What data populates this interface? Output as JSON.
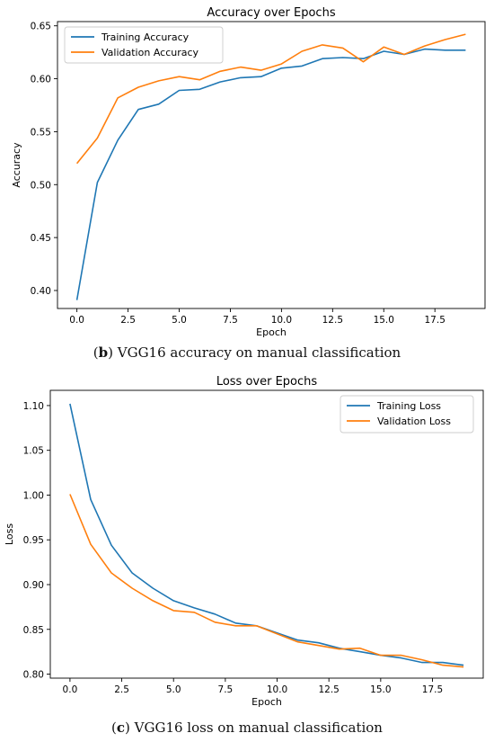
{
  "colors": {
    "training": "#1f77b4",
    "validation": "#ff7f0e"
  },
  "captions": {
    "b": {
      "label": "b",
      "text": " VGG16 accuracy on manual classification"
    },
    "c": {
      "label": "c",
      "text": " VGG16 loss on manual classification"
    }
  },
  "chart_data": [
    {
      "type": "line",
      "title": "Accuracy over Epochs",
      "xlabel": "Epoch",
      "ylabel": "Accuracy",
      "xlim": [
        -0.95,
        19.95
      ],
      "ylim": [
        0.383,
        0.654
      ],
      "xticks": [
        0.0,
        2.5,
        5.0,
        7.5,
        10.0,
        12.5,
        15.0,
        17.5
      ],
      "xtick_labels": [
        "0.0",
        "2.5",
        "5.0",
        "7.5",
        "10.0",
        "12.5",
        "15.0",
        "17.5"
      ],
      "yticks": [
        0.4,
        0.45,
        0.5,
        0.55,
        0.6,
        0.65
      ],
      "ytick_labels": [
        "0.40",
        "0.45",
        "0.50",
        "0.55",
        "0.60",
        "0.65"
      ],
      "grid": false,
      "legend": "top-left",
      "x": [
        0,
        1,
        2,
        3,
        4,
        5,
        6,
        7,
        8,
        9,
        10,
        11,
        12,
        13,
        14,
        15,
        16,
        17,
        18,
        19
      ],
      "series": [
        {
          "name": "Training Accuracy",
          "color": "training",
          "values": [
            0.391,
            0.502,
            0.542,
            0.571,
            0.576,
            0.589,
            0.59,
            0.597,
            0.601,
            0.602,
            0.61,
            0.612,
            0.619,
            0.62,
            0.619,
            0.626,
            0.623,
            0.628,
            0.627,
            0.627
          ]
        },
        {
          "name": "Validation Accuracy",
          "color": "validation",
          "values": [
            0.52,
            0.544,
            0.582,
            0.592,
            0.598,
            0.602,
            0.599,
            0.607,
            0.611,
            0.608,
            0.614,
            0.626,
            0.632,
            0.629,
            0.616,
            0.63,
            0.623,
            0.631,
            0.637,
            0.642
          ]
        }
      ]
    },
    {
      "type": "line",
      "title": "Loss over Epochs",
      "xlabel": "Epoch",
      "ylabel": "Loss",
      "xlim": [
        -0.95,
        19.95
      ],
      "ylim": [
        0.7955,
        1.117
      ],
      "xticks": [
        0.0,
        2.5,
        5.0,
        7.5,
        10.0,
        12.5,
        15.0,
        17.5
      ],
      "xtick_labels": [
        "0.0",
        "2.5",
        "5.0",
        "7.5",
        "10.0",
        "12.5",
        "15.0",
        "17.5"
      ],
      "yticks": [
        0.8,
        0.85,
        0.9,
        0.95,
        1.0,
        1.05,
        1.1
      ],
      "ytick_labels": [
        "0.80",
        "0.85",
        "0.90",
        "0.95",
        "1.00",
        "1.05",
        "1.10"
      ],
      "grid": false,
      "legend": "top-right",
      "x": [
        0,
        1,
        2,
        3,
        4,
        5,
        6,
        7,
        8,
        9,
        10,
        11,
        12,
        13,
        14,
        15,
        16,
        17,
        18,
        19
      ],
      "series": [
        {
          "name": "Training Loss",
          "color": "training",
          "values": [
            1.102,
            0.995,
            0.944,
            0.913,
            0.896,
            0.882,
            0.874,
            0.867,
            0.857,
            0.854,
            0.846,
            0.838,
            0.835,
            0.829,
            0.825,
            0.821,
            0.818,
            0.813,
            0.813,
            0.81
          ]
        },
        {
          "name": "Validation Loss",
          "color": "validation",
          "values": [
            1.001,
            0.945,
            0.913,
            0.896,
            0.882,
            0.871,
            0.869,
            0.858,
            0.854,
            0.854,
            0.845,
            0.836,
            0.832,
            0.828,
            0.829,
            0.821,
            0.821,
            0.816,
            0.81,
            0.808
          ]
        }
      ]
    }
  ]
}
